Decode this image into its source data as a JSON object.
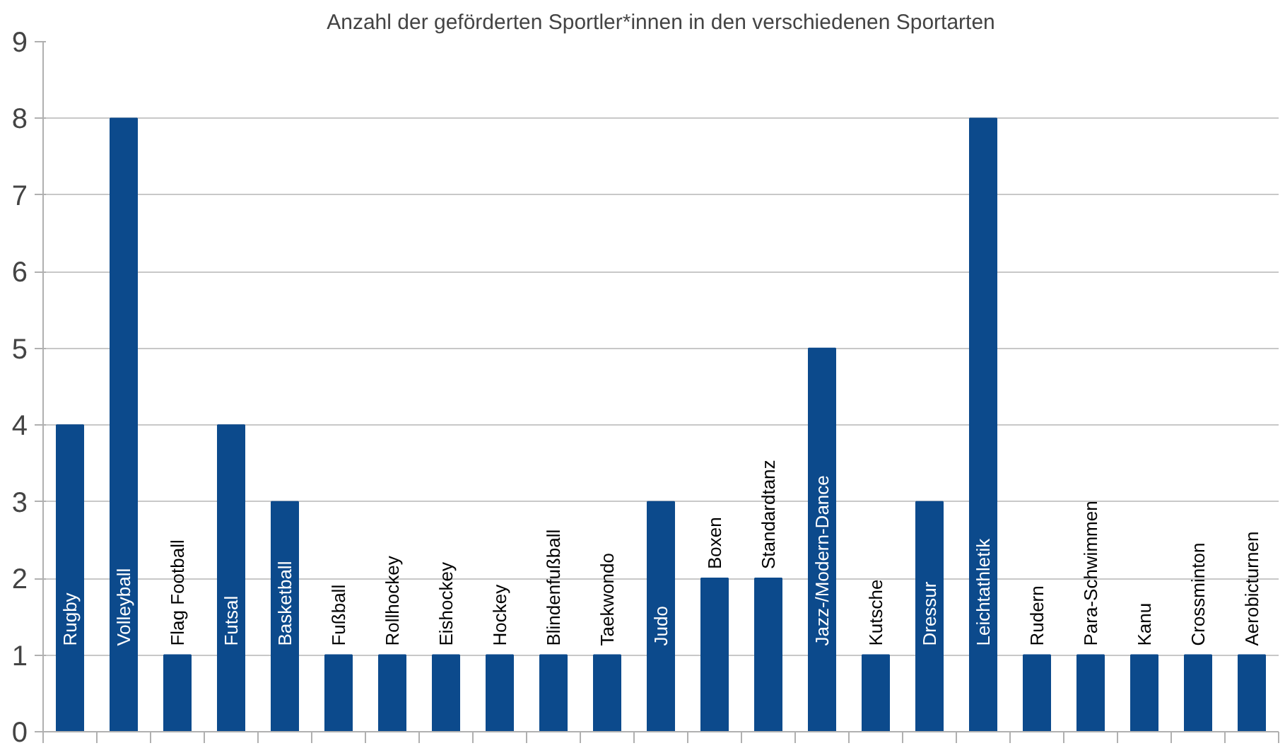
{
  "chart_data": {
    "type": "bar",
    "title": "Anzahl der geförderten Sportler*innen in den verschiedenen Sportarten",
    "categories": [
      "Rugby",
      "Volleyball",
      "Flag Football",
      "Futsal",
      "Basketball",
      "Fußball",
      "Rollhockey",
      "Eishockey",
      "Hockey",
      "Blindenfußball",
      "Taekwondo",
      "Judo",
      "Boxen",
      "Standardtanz",
      "Jazz-/Modern-Dance",
      "Kutsche",
      "Dressur",
      "Leichtathletik",
      "Rudern",
      "Para-Schwimmen",
      "Kanu",
      "Crossminton",
      "Aerobicturnen"
    ],
    "values": [
      4,
      8,
      1,
      4,
      3,
      1,
      1,
      1,
      1,
      1,
      1,
      3,
      2,
      2,
      5,
      1,
      3,
      8,
      1,
      1,
      1,
      1,
      1
    ],
    "color": "#0c4a8c",
    "ylim": [
      0,
      9
    ],
    "yticks": [
      0,
      1,
      2,
      3,
      4,
      5,
      6,
      7,
      8,
      9
    ],
    "grid": "y",
    "tick_labels": "y"
  }
}
